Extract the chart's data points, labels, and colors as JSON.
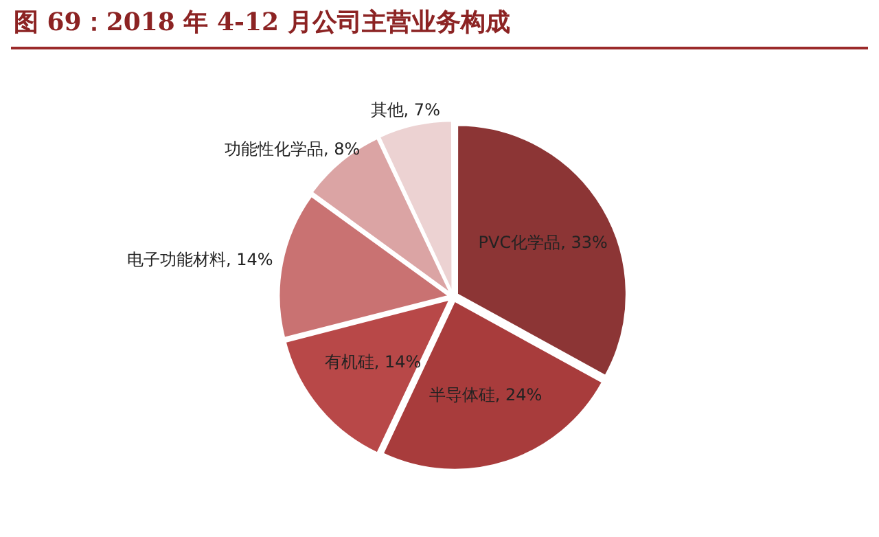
{
  "chart_data": {
    "type": "pie",
    "title": "图 69：2018 年 4-12 月公司主营业务构成",
    "categories": [
      "PVC化学品",
      "半导体硅",
      "有机硅",
      "电子功能材料",
      "功能性化学品",
      "其他"
    ],
    "value_labels": [
      "33%",
      "24%",
      "14%",
      "14%",
      "8%",
      "7%"
    ],
    "values": [
      33,
      24,
      14,
      14,
      8,
      7
    ],
    "colors": [
      "#8c3535",
      "#a83c3c",
      "#b84848",
      "#c97272",
      "#dba4a4",
      "#ecd2d2"
    ],
    "legend": false
  }
}
